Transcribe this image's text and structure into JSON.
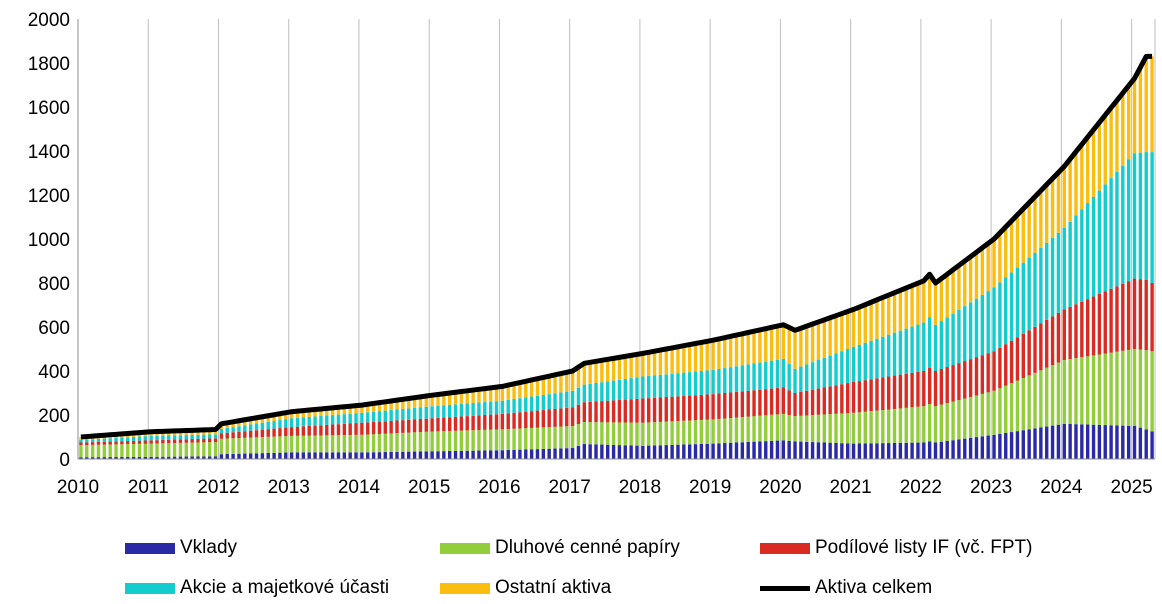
{
  "chart_data": {
    "type": "bar",
    "stacked": true,
    "frequency": "monthly",
    "x_start": "2010-01",
    "x_end": "2025-04",
    "x_ticks": [
      "2010",
      "2011",
      "2012",
      "2013",
      "2014",
      "2015",
      "2016",
      "2017",
      "2018",
      "2019",
      "2020",
      "2021",
      "2022",
      "2023",
      "2024",
      "2025"
    ],
    "ylim": [
      0,
      2000
    ],
    "y_ticks": [
      "0",
      "200",
      "400",
      "600",
      "800",
      "1000",
      "1200",
      "1400",
      "1600",
      "1800",
      "2000"
    ],
    "grid": "vertical",
    "legend_position": "bottom",
    "anchors": [
      {
        "date": "2010-01",
        "vklady": 8,
        "dluhove": 55,
        "podilove": 12,
        "akcie": 12,
        "ostatni": 13,
        "celkem": 100
      },
      {
        "date": "2011-01",
        "vklady": 10,
        "dluhove": 60,
        "podilove": 15,
        "akcie": 20,
        "ostatni": 19,
        "celkem": 124
      },
      {
        "date": "2011-12",
        "vklady": 12,
        "dluhove": 65,
        "podilove": 17,
        "akcie": 18,
        "ostatni": 22,
        "celkem": 134
      },
      {
        "date": "2012-01",
        "vklady": 22,
        "dluhove": 70,
        "podilove": 25,
        "akcie": 20,
        "ostatni": 23,
        "celkem": 160
      },
      {
        "date": "2013-01",
        "vklady": 30,
        "dluhove": 75,
        "podilove": 40,
        "akcie": 40,
        "ostatni": 30,
        "celkem": 215
      },
      {
        "date": "2014-01",
        "vklady": 30,
        "dluhove": 80,
        "podilove": 55,
        "akcie": 45,
        "ostatni": 35,
        "celkem": 245
      },
      {
        "date": "2015-01",
        "vklady": 35,
        "dluhove": 90,
        "podilove": 60,
        "akcie": 55,
        "ostatni": 50,
        "celkem": 290
      },
      {
        "date": "2016-01",
        "vklady": 40,
        "dluhove": 95,
        "podilove": 70,
        "akcie": 60,
        "ostatni": 65,
        "celkem": 330
      },
      {
        "date": "2017-01",
        "vklady": 50,
        "dluhove": 100,
        "podilove": 85,
        "akcie": 75,
        "ostatni": 90,
        "celkem": 400
      },
      {
        "date": "2017-03",
        "vklady": 68,
        "dluhove": 100,
        "podilove": 90,
        "akcie": 80,
        "ostatni": 97,
        "celkem": 435
      },
      {
        "date": "2018-01",
        "vklady": 60,
        "dluhove": 105,
        "podilove": 110,
        "akcie": 100,
        "ostatni": 105,
        "celkem": 480
      },
      {
        "date": "2019-01",
        "vklady": 70,
        "dluhove": 110,
        "podilove": 115,
        "akcie": 110,
        "ostatni": 135,
        "celkem": 540
      },
      {
        "date": "2020-01",
        "vklady": 85,
        "dluhove": 120,
        "podilove": 120,
        "akcie": 130,
        "ostatni": 155,
        "celkem": 610
      },
      {
        "date": "2020-03",
        "vklady": 80,
        "dluhove": 115,
        "podilove": 105,
        "akcie": 110,
        "ostatni": 175,
        "celkem": 585
      },
      {
        "date": "2021-01",
        "vklady": 70,
        "dluhove": 140,
        "podilove": 140,
        "akcie": 160,
        "ostatni": 170,
        "celkem": 680
      },
      {
        "date": "2022-01",
        "vklady": 75,
        "dluhove": 165,
        "podilove": 160,
        "akcie": 220,
        "ostatni": 190,
        "celkem": 810
      },
      {
        "date": "2022-02",
        "vklady": 80,
        "dluhove": 170,
        "podilove": 165,
        "akcie": 230,
        "ostatni": 195,
        "celkem": 840
      },
      {
        "date": "2022-03",
        "vklady": 75,
        "dluhove": 165,
        "podilove": 160,
        "akcie": 210,
        "ostatni": 190,
        "celkem": 800
      },
      {
        "date": "2023-01",
        "vklady": 110,
        "dluhove": 200,
        "podilove": 180,
        "akcie": 290,
        "ostatni": 220,
        "celkem": 1000
      },
      {
        "date": "2024-01",
        "vklady": 160,
        "dluhove": 290,
        "podilove": 230,
        "akcie": 370,
        "ostatni": 280,
        "celkem": 1330
      },
      {
        "date": "2025-01",
        "vklady": 150,
        "dluhove": 350,
        "podilove": 320,
        "akcie": 570,
        "ostatni": 340,
        "celkem": 1730
      },
      {
        "date": "2025-03",
        "vklady": 135,
        "dluhove": 360,
        "podilove": 320,
        "akcie": 580,
        "ostatni": 435,
        "celkem": 1830
      },
      {
        "date": "2025-04",
        "vklady": 125,
        "dluhove": 365,
        "podilove": 310,
        "akcie": 595,
        "ostatni": 435,
        "celkem": 1830
      }
    ],
    "series": [
      {
        "key": "vklady",
        "name": "Vklady",
        "color": "#2a2aa6",
        "kind": "bar"
      },
      {
        "key": "dluhove",
        "name": "Dluhové cenné papíry",
        "color": "#92cd3c",
        "kind": "bar"
      },
      {
        "key": "podilove",
        "name": "Podílové listy IF (vč. FPT)",
        "color": "#d92b22",
        "kind": "bar"
      },
      {
        "key": "akcie",
        "name": "Akcie a majetkové účasti",
        "color": "#12cccd",
        "kind": "bar"
      },
      {
        "key": "ostatni",
        "name": "Ostatní aktiva",
        "color": "#fbbd0f",
        "kind": "bar"
      },
      {
        "key": "celkem",
        "name": "Aktiva celkem",
        "color": "#000000",
        "kind": "line"
      }
    ]
  }
}
